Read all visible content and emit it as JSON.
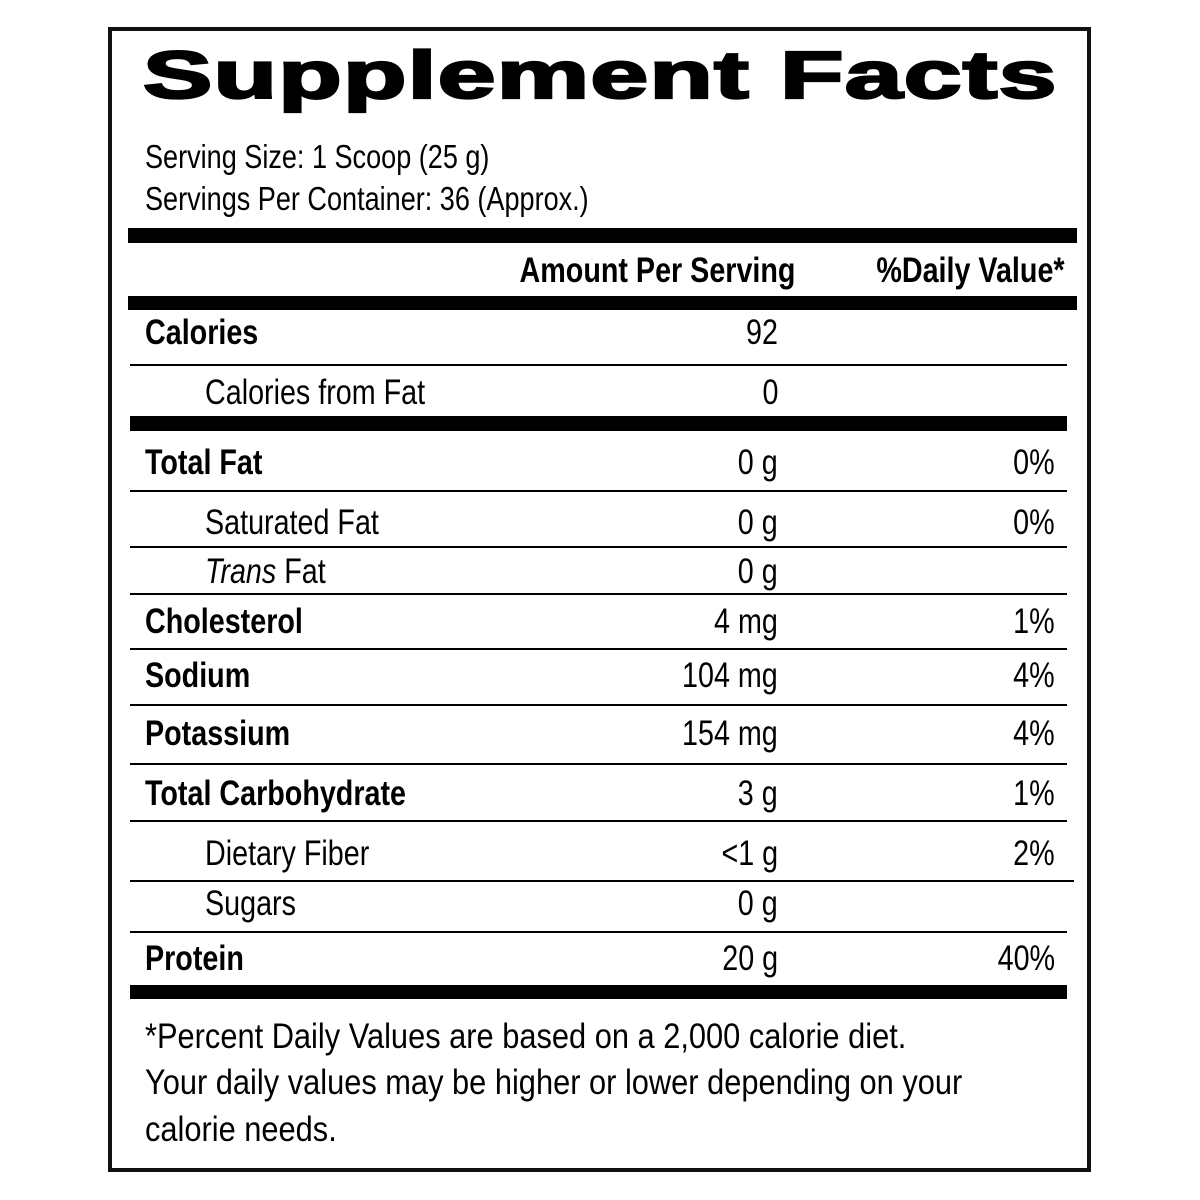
{
  "title": "Supplement Facts",
  "serving_size": "Serving Size: 1 Scoop (25 g)",
  "servings_per_container": "Servings Per Container: 36 (Approx.)",
  "header": {
    "amount": "Amount Per Serving",
    "dv": "%Daily Value*"
  },
  "rows": [
    {
      "label": "Calories",
      "amount": "92",
      "dv": ""
    },
    {
      "label": "Calories from Fat",
      "amount": "0",
      "dv": ""
    },
    {
      "label": "Total Fat",
      "amount": "0 g",
      "dv": "0%"
    },
    {
      "label": "Saturated Fat",
      "amount": "0 g",
      "dv": "0%"
    },
    {
      "label_italic": "Trans",
      "label": " Fat",
      "amount": "0 g",
      "dv": ""
    },
    {
      "label": "Cholesterol",
      "amount": "4 mg",
      "dv": "1%"
    },
    {
      "label": "Sodium",
      "amount": "104 mg",
      "dv": "4%"
    },
    {
      "label": "Potassium",
      "amount": "154 mg",
      "dv": "4%"
    },
    {
      "label": "Total Carbohydrate",
      "amount": "3 g",
      "dv": "1%"
    },
    {
      "label": "Dietary Fiber",
      "amount": "<1 g",
      "dv": "2%"
    },
    {
      "label": "Sugars",
      "amount": "0 g",
      "dv": ""
    },
    {
      "label": "Protein",
      "amount": "20 g",
      "dv": "40%"
    }
  ],
  "footnote": [
    "*Percent Daily Values are based on a 2,000 calorie diet.",
    "Your daily values may be higher or lower depending on your",
    "calorie needs."
  ]
}
